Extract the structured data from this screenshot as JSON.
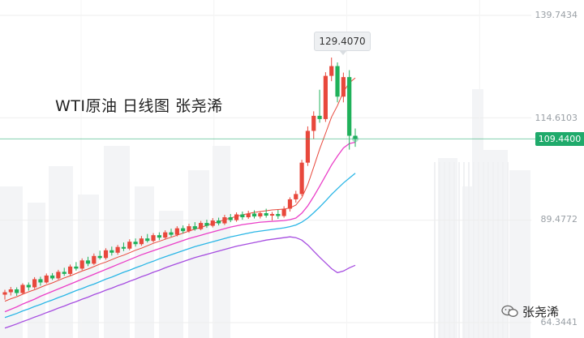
{
  "title": "WTI原油  日线图  张尧浠",
  "brand": {
    "icon": "wechat-icon",
    "label": "张尧浠"
  },
  "colors": {
    "up": "#e8483c",
    "down": "#1fb15a",
    "ma_short": "#e8483c",
    "ma_mid": "#ea3fc8",
    "ma_long_cyan": "#2ab6e6",
    "ma_long_purple": "#a64de0",
    "price_line": "#1faa6b"
  },
  "chart_data": {
    "type": "candlestick",
    "title": "WTI原油  日线图  张尧浠",
    "xlabel": "",
    "ylabel": "",
    "ylim": [
      62.0,
      142.0
    ],
    "y_ticks": [
      "139.7434",
      "114.6103",
      "89.4772",
      "64.3441"
    ],
    "y_tick_values": [
      139.7434,
      114.6103,
      89.4772,
      64.3441
    ],
    "current_price": "109.4400",
    "current_price_value": 109.44,
    "peak_label": "129.4070",
    "peak_value": 129.407,
    "candles": [
      [
        71.2,
        72.4,
        70.0,
        71.8
      ],
      [
        71.8,
        73.1,
        71.0,
        72.5
      ],
      [
        72.5,
        73.0,
        70.9,
        71.6
      ],
      [
        71.6,
        74.0,
        71.3,
        73.6
      ],
      [
        73.6,
        74.2,
        72.2,
        73.0
      ],
      [
        73.0,
        75.5,
        72.6,
        75.0
      ],
      [
        75.0,
        75.6,
        73.4,
        74.2
      ],
      [
        74.2,
        76.4,
        73.9,
        75.9
      ],
      [
        75.9,
        76.5,
        74.8,
        75.2
      ],
      [
        75.2,
        77.3,
        74.9,
        76.8
      ],
      [
        76.8,
        77.8,
        75.8,
        76.3
      ],
      [
        76.3,
        78.6,
        75.9,
        78.1
      ],
      [
        78.1,
        79.2,
        77.1,
        77.6
      ],
      [
        77.6,
        80.1,
        77.2,
        79.6
      ],
      [
        79.6,
        80.5,
        78.2,
        78.8
      ],
      [
        78.8,
        81.3,
        78.5,
        80.7
      ],
      [
        80.7,
        82.0,
        79.8,
        80.2
      ],
      [
        80.2,
        82.6,
        79.8,
        82.1
      ],
      [
        82.1,
        83.0,
        80.8,
        81.5
      ],
      [
        81.5,
        83.4,
        81.0,
        82.9
      ],
      [
        82.9,
        84.0,
        81.9,
        82.5
      ],
      [
        82.5,
        84.8,
        82.1,
        84.2
      ],
      [
        84.2,
        85.0,
        83.0,
        83.6
      ],
      [
        83.6,
        85.6,
        83.2,
        85.0
      ],
      [
        85.0,
        86.1,
        84.0,
        84.4
      ],
      [
        84.4,
        86.3,
        84.0,
        85.8
      ],
      [
        85.8,
        86.5,
        84.6,
        85.2
      ],
      [
        85.2,
        87.0,
        84.8,
        86.5
      ],
      [
        86.5,
        87.4,
        85.4,
        85.9
      ],
      [
        85.9,
        88.0,
        85.5,
        87.5
      ],
      [
        87.5,
        88.2,
        86.2,
        86.8
      ],
      [
        86.8,
        88.6,
        86.4,
        88.0
      ],
      [
        88.0,
        89.0,
        86.9,
        87.3
      ],
      [
        87.3,
        89.3,
        87.0,
        88.8
      ],
      [
        88.8,
        89.6,
        87.6,
        88.1
      ],
      [
        88.1,
        90.0,
        87.7,
        89.4
      ],
      [
        89.4,
        90.1,
        88.2,
        88.7
      ],
      [
        88.7,
        90.8,
        88.3,
        90.2
      ],
      [
        90.2,
        91.0,
        89.0,
        89.5
      ],
      [
        89.5,
        91.4,
        89.1,
        90.9
      ],
      [
        90.9,
        91.6,
        89.6,
        90.2
      ],
      [
        90.2,
        91.8,
        89.8,
        91.1
      ],
      [
        91.1,
        91.9,
        89.9,
        90.4
      ],
      [
        90.4,
        91.7,
        89.9,
        91.2
      ],
      [
        91.2,
        92.3,
        90.1,
        90.6
      ],
      [
        90.6,
        91.5,
        89.4,
        91.0
      ],
      [
        91.0,
        92.0,
        89.8,
        90.5
      ],
      [
        90.5,
        92.9,
        90.1,
        92.3
      ],
      [
        92.3,
        95.1,
        91.6,
        94.6
      ],
      [
        94.6,
        96.7,
        93.8,
        95.9
      ],
      [
        95.9,
        104.3,
        95.4,
        103.6
      ],
      [
        103.6,
        112.5,
        102.8,
        111.4
      ],
      [
        111.4,
        116.2,
        109.4,
        115.1
      ],
      [
        115.1,
        121.5,
        113.4,
        114.3
      ],
      [
        114.3,
        125.8,
        113.6,
        124.9
      ],
      [
        124.9,
        129.4,
        123.6,
        127.3
      ],
      [
        127.3,
        128.2,
        118.4,
        119.8
      ],
      [
        119.8,
        125.7,
        118.4,
        124.6
      ],
      [
        124.6,
        126.3,
        106.8,
        110.2
      ],
      [
        110.2,
        112.0,
        107.5,
        109.44
      ]
    ],
    "series": [
      {
        "values": [
          69.6,
          70.2,
          70.7,
          71.3,
          71.9,
          72.4,
          73.0,
          73.6,
          74.1,
          74.7,
          75.3,
          75.8,
          76.4,
          77.0,
          77.5,
          78.1,
          78.7,
          79.2,
          79.8,
          80.4,
          80.9,
          81.5,
          82.1,
          82.6,
          83.2,
          83.8,
          84.3,
          84.8,
          85.3,
          85.8,
          86.3,
          86.8,
          87.3,
          87.7,
          88.2,
          88.7,
          89.1,
          89.6,
          90.0,
          90.4,
          90.8,
          91.1,
          91.4,
          91.6,
          91.8,
          92.0,
          92.1,
          92.2,
          92.5,
          93.2,
          95.0,
          98.2,
          102.5,
          106.9,
          110.8,
          114.8,
          117.6,
          121.0,
          123.2,
          124.4
        ]
      },
      {
        "values": [
          67.0,
          67.6,
          68.2,
          68.9,
          69.5,
          70.1,
          70.8,
          71.4,
          72.0,
          72.6,
          73.2,
          73.8,
          74.4,
          75.0,
          75.6,
          76.2,
          76.8,
          77.4,
          78.0,
          78.6,
          79.2,
          79.8,
          80.4,
          81.0,
          81.5,
          82.0,
          82.5,
          83.0,
          83.5,
          84.0,
          84.5,
          85.0,
          85.4,
          85.8,
          86.2,
          86.6,
          87.0,
          87.4,
          87.8,
          88.1,
          88.4,
          88.6,
          88.8,
          89.0,
          89.1,
          89.2,
          89.3,
          89.4,
          89.6,
          90.0,
          91.2,
          93.0,
          95.3,
          97.8,
          100.4,
          103.0,
          105.2,
          107.2,
          108.3,
          108.6
        ]
      },
      {
        "values": [
          65.6,
          66.1,
          66.6,
          67.2,
          67.7,
          68.3,
          68.8,
          69.4,
          69.9,
          70.5,
          71.0,
          71.6,
          72.2,
          72.7,
          73.3,
          73.8,
          74.4,
          75.0,
          75.5,
          76.1,
          76.7,
          77.2,
          77.8,
          78.3,
          78.9,
          79.4,
          80.0,
          80.5,
          81.0,
          81.5,
          82.0,
          82.5,
          83.0,
          83.4,
          83.8,
          84.2,
          84.6,
          85.0,
          85.4,
          85.7,
          86.0,
          86.3,
          86.6,
          86.8,
          87.0,
          87.2,
          87.4,
          87.6,
          87.9,
          88.3,
          89.0,
          90.0,
          91.3,
          92.7,
          94.2,
          95.8,
          97.2,
          98.6,
          99.8,
          101.0
        ]
      },
      {
        "values": [
          63.0,
          63.5,
          64.0,
          64.6,
          65.1,
          65.7,
          66.2,
          66.8,
          67.3,
          67.9,
          68.4,
          69.0,
          69.5,
          70.1,
          70.6,
          71.2,
          71.7,
          72.3,
          72.8,
          73.4,
          73.9,
          74.5,
          75.0,
          75.6,
          76.1,
          76.7,
          77.2,
          77.8,
          78.3,
          78.8,
          79.3,
          79.8,
          80.3,
          80.7,
          81.1,
          81.5,
          81.9,
          82.3,
          82.7,
          83.1,
          83.4,
          83.7,
          84.0,
          84.3,
          84.6,
          84.8,
          85.0,
          85.2,
          85.4,
          85.2,
          84.6,
          83.4,
          81.9,
          80.4,
          79.0,
          77.6,
          76.6,
          77.0,
          77.8,
          78.4
        ]
      }
    ]
  }
}
